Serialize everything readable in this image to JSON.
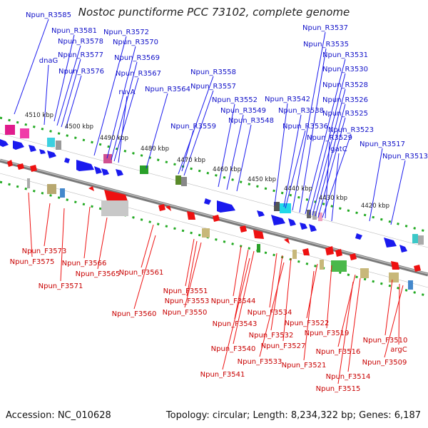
{
  "title": "Nostoc punctiforme PCC 73102, complete genome",
  "footer": {
    "accession": "Accession: NC_010628",
    "summary": "Topology: circular; Length: 8,234,322 bp; Genes: 6,187"
  },
  "ticks": [
    "4510 kbp",
    "4500 kbp",
    "4490 kbp",
    "4480 kbp",
    "4470 kbp",
    "4460 kbp",
    "4450 kbp",
    "4440 kbp",
    "4430 kbp",
    "4420 kbp"
  ],
  "top_labels": [
    "Npun_R3585",
    "Npun_R3581",
    "dnaG",
    "Npun_R3578",
    "Npun_R3577",
    "Npun_R3576",
    "Npun_R3572",
    "Npun_R3570",
    "Npun_R3569",
    "Npun_R3567",
    "ruvA",
    "Npun_R3564",
    "Npun_R3558",
    "Npun_R3557",
    "Npun_R3559",
    "Npun_R3552",
    "Npun_R3549",
    "Npun_R3548",
    "Npun_R3542",
    "Npun_R3538",
    "Npun_R3537",
    "Npun_R3535",
    "Npun_R3531",
    "Npun_R3530",
    "Npun_R3528",
    "Npun_R3526",
    "Npun_R3525",
    "Npun_R3536",
    "Npun_R3523",
    "Npun_R3529",
    "gatC",
    "Npun_R3517",
    "Npun_R3513"
  ],
  "bottom_labels": [
    "Npun_F3573",
    "Npun_F3575",
    "Npun_F3566",
    "Npun_F3571",
    "Npun_F3565",
    "Npun_F3561",
    "Npun_F3560",
    "Npun_F3551",
    "Npun_F3553",
    "Npun_F3550",
    "Npun_F3544",
    "Npun_F3543",
    "Npun_F3540",
    "Npun_F3541",
    "Npun_F3534",
    "Npun_F3532",
    "Npun_F3527",
    "Npun_F3533",
    "Npun_F3522",
    "Npun_F3519",
    "Npun_F3521",
    "Npun_F3516",
    "Npun_F3514",
    "Npun_F3515",
    "Npun_F3510",
    "argC",
    "Npun_F3509"
  ],
  "colors": {
    "forward": "#1a1aee",
    "reverse": "#ee1111",
    "backbone": "#888888",
    "dots": "#22aa22"
  }
}
